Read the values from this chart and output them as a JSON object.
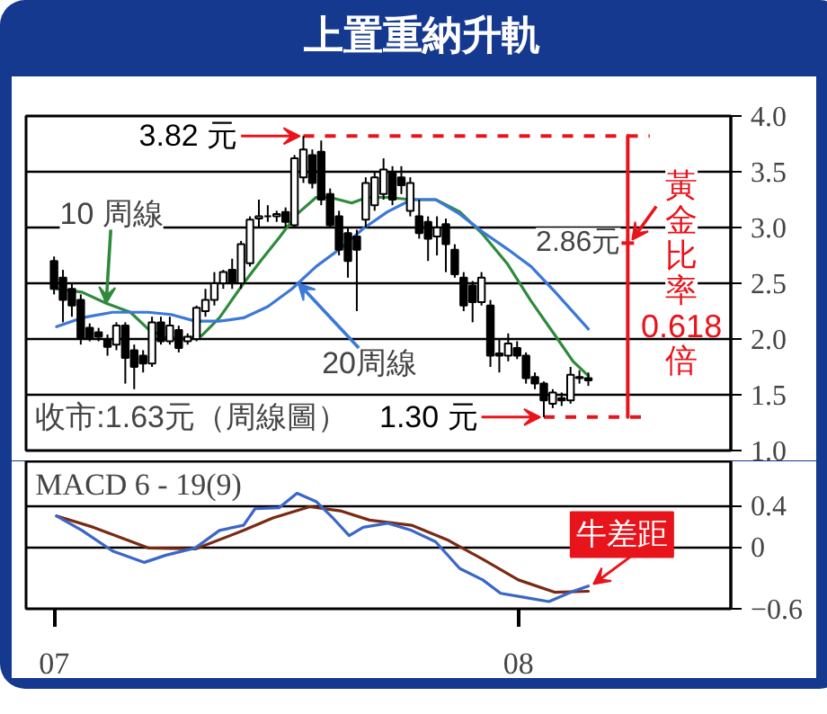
{
  "chart_data": [
    {
      "type": "candlestick",
      "title": "上置重納升軌",
      "xlim": [
        "2006-12-10",
        "2008-06-16"
      ],
      "ylim": [
        1.0,
        4.0
      ],
      "yticks": [
        {
          "value": 1,
          "label": "1.0"
        },
        1.5,
        {
          "value": 2,
          "label": "2.0"
        },
        2.5,
        {
          "value": 3,
          "label": "3.0"
        },
        3.5,
        {
          "value": 4,
          "label": "4.0"
        }
      ],
      "tick_labels": "y",
      "grid": "y",
      "x": [
        "2007-01-01",
        "2007-01-08",
        "2007-01-15",
        "2007-01-22",
        "2007-01-29",
        "2007-02-05",
        "2007-02-12",
        "2007-02-19",
        "2007-02-26",
        "2007-03-05",
        "2007-03-12",
        "2007-03-19",
        "2007-03-26",
        "2007-04-02",
        "2007-04-09",
        "2007-04-16",
        "2007-04-23",
        "2007-04-30",
        "2007-05-07",
        "2007-05-14",
        "2007-05-21",
        "2007-05-28",
        "2007-06-04",
        "2007-06-11",
        "2007-06-18",
        "2007-06-25",
        "2007-07-02",
        "2007-07-09",
        "2007-07-16",
        "2007-07-23",
        "2007-07-30",
        "2007-08-06",
        "2007-08-13",
        "2007-08-20",
        "2007-08-27",
        "2007-09-03",
        "2007-09-10",
        "2007-09-17",
        "2007-09-24",
        "2007-10-01",
        "2007-10-08",
        "2007-10-15",
        "2007-10-22",
        "2007-10-29",
        "2007-11-05",
        "2007-11-12",
        "2007-11-19",
        "2007-11-26",
        "2007-12-03",
        "2007-12-10",
        "2007-12-17",
        "2007-12-24",
        "2007-12-31",
        "2008-01-07",
        "2008-01-14",
        "2008-01-21",
        "2008-01-28",
        "2008-02-04",
        "2008-02-11",
        "2008-02-18",
        "2008-02-25"
      ],
      "ohlc": [
        [
          2.7,
          2.74,
          2.4,
          2.45
        ],
        [
          2.55,
          2.62,
          2.15,
          2.35
        ],
        [
          2.45,
          2.5,
          2.2,
          2.3
        ],
        [
          2.35,
          2.4,
          1.95,
          2.0
        ],
        [
          2.1,
          2.14,
          1.98,
          2.0
        ],
        [
          2.06,
          2.1,
          1.98,
          2.02
        ],
        [
          2.0,
          2.04,
          1.85,
          1.93
        ],
        [
          1.95,
          2.15,
          1.9,
          2.12
        ],
        [
          2.12,
          2.15,
          1.6,
          1.83
        ],
        [
          1.9,
          1.95,
          1.55,
          1.75
        ],
        [
          1.85,
          1.9,
          1.7,
          1.78
        ],
        [
          1.78,
          2.2,
          1.75,
          2.15
        ],
        [
          2.15,
          2.2,
          1.95,
          1.98
        ],
        [
          1.98,
          2.2,
          1.95,
          2.12
        ],
        [
          2.08,
          2.12,
          1.88,
          1.92
        ],
        [
          1.98,
          2.05,
          1.95,
          2.02
        ],
        [
          2.0,
          2.3,
          1.98,
          2.28
        ],
        [
          2.25,
          2.45,
          2.2,
          2.35
        ],
        [
          2.35,
          2.6,
          2.3,
          2.5
        ],
        [
          2.5,
          2.62,
          2.45,
          2.6
        ],
        [
          2.62,
          2.72,
          2.45,
          2.5
        ],
        [
          2.5,
          2.88,
          2.45,
          2.85
        ],
        [
          2.68,
          3.1,
          2.65,
          3.07
        ],
        [
          3.08,
          3.25,
          3.0,
          3.1
        ],
        [
          3.1,
          3.2,
          3.05,
          3.1
        ],
        [
          3.1,
          3.15,
          3.05,
          3.12
        ],
        [
          3.14,
          3.18,
          3.0,
          3.05
        ],
        [
          3.02,
          3.65,
          3.0,
          3.62
        ],
        [
          3.45,
          3.82,
          3.4,
          3.7
        ],
        [
          3.65,
          3.7,
          3.35,
          3.4
        ],
        [
          3.68,
          3.78,
          3.2,
          3.25
        ],
        [
          3.3,
          3.35,
          3.0,
          3.02
        ],
        [
          3.1,
          3.15,
          2.75,
          2.8
        ],
        [
          2.95,
          3.0,
          2.55,
          2.7
        ],
        [
          2.92,
          2.98,
          2.25,
          2.8
        ],
        [
          3.07,
          3.45,
          3.0,
          3.4
        ],
        [
          3.2,
          3.5,
          3.15,
          3.45
        ],
        [
          3.3,
          3.62,
          3.25,
          3.52
        ],
        [
          3.5,
          3.55,
          3.2,
          3.25
        ],
        [
          3.45,
          3.55,
          3.3,
          3.38
        ],
        [
          3.15,
          3.45,
          3.1,
          3.4
        ],
        [
          3.1,
          3.25,
          2.9,
          2.95
        ],
        [
          3.05,
          3.1,
          2.7,
          2.9
        ],
        [
          2.92,
          3.1,
          2.75,
          3.0
        ],
        [
          3.03,
          3.08,
          2.6,
          2.85
        ],
        [
          2.8,
          2.85,
          2.55,
          2.58
        ],
        [
          2.55,
          2.6,
          2.25,
          2.3
        ],
        [
          2.48,
          2.52,
          2.15,
          2.33
        ],
        [
          2.33,
          2.6,
          2.3,
          2.55
        ],
        [
          2.3,
          2.35,
          1.75,
          1.85
        ],
        [
          1.87,
          2.0,
          1.7,
          1.85
        ],
        [
          1.85,
          2.05,
          1.8,
          1.96
        ],
        [
          1.92,
          1.98,
          1.82,
          1.85
        ],
        [
          1.85,
          1.88,
          1.6,
          1.65
        ],
        [
          1.66,
          1.7,
          1.55,
          1.6
        ],
        [
          1.6,
          1.62,
          1.3,
          1.45
        ],
        [
          1.42,
          1.55,
          1.38,
          1.52
        ],
        [
          1.47,
          1.52,
          1.4,
          1.45
        ],
        [
          1.45,
          1.75,
          1.42,
          1.68
        ],
        [
          1.65,
          1.72,
          1.6,
          1.66
        ],
        [
          1.65,
          1.7,
          1.58,
          1.63
        ]
      ],
      "series": [
        {
          "type": "line",
          "color": "#2e8b3a",
          "x": [
            "2007-01-03",
            "2007-01-23",
            "2007-02-11",
            "2007-03-02",
            "2007-03-16",
            "2007-03-30",
            "2007-04-13",
            "2007-04-27",
            "2007-05-11",
            "2007-05-30",
            "2007-06-13",
            "2007-06-27",
            "2007-07-11",
            "2007-07-26",
            "2007-08-06",
            "2007-08-23",
            "2007-09-04",
            "2007-09-20",
            "2007-10-09",
            "2007-10-28",
            "2007-11-16",
            "2007-12-04",
            "2007-12-23",
            "2008-01-11",
            "2008-01-30",
            "2008-02-13",
            "2008-02-25"
          ],
          "values": [
            2.45,
            2.42,
            2.32,
            2.24,
            2.09,
            2.01,
            2.01,
            2.03,
            2.19,
            2.5,
            2.71,
            2.91,
            3.12,
            3.27,
            3.27,
            3.22,
            3.27,
            3.27,
            3.25,
            3.25,
            3.14,
            2.94,
            2.68,
            2.34,
            2.03,
            1.8,
            1.67
          ]
        },
        {
          "type": "line",
          "color": "#3b78d8",
          "x": [
            "2007-01-03",
            "2007-01-23",
            "2007-02-16",
            "2007-03-16",
            "2007-04-03",
            "2007-04-22",
            "2007-05-11",
            "2007-05-30",
            "2007-06-18",
            "2007-07-07",
            "2007-07-26",
            "2007-08-14",
            "2007-09-01",
            "2007-09-20",
            "2007-10-09",
            "2007-10-28",
            "2007-11-16",
            "2007-12-04",
            "2007-12-23",
            "2008-01-11",
            "2008-01-30",
            "2008-02-25"
          ],
          "values": [
            2.11,
            2.19,
            2.24,
            2.24,
            2.22,
            2.16,
            2.16,
            2.19,
            2.29,
            2.45,
            2.65,
            2.81,
            2.99,
            3.14,
            3.25,
            3.25,
            3.12,
            2.96,
            2.81,
            2.65,
            2.42,
            2.09
          ]
        },
        {
          "type": "line",
          "color": "#e8141c",
          "x": [
            "2008-03-27",
            "2008-03-27"
          ],
          "values": [
            1.3,
            3.82
          ]
        }
      ],
      "ref_lines": [
        {
          "axis": "y",
          "value": 3.82,
          "label": "3.82 元",
          "color": "#e8141c",
          "line_style": "dashed"
        },
        {
          "axis": "y",
          "value": 1.3,
          "label": "1.30 元",
          "color": "#e8141c",
          "line_style": "dashed"
        }
      ],
      "annotations": [
        {
          "text": "10 周線",
          "x": "2007-02-11",
          "y": 2.32
        },
        {
          "text": "20周線",
          "x": "2007-07-12",
          "y": 2.5
        },
        "2.86元",
        {
          "text": "黃金比率0.618倍",
          "x": "2008-03-27",
          "y": 2.86
        },
        "收市:1.63元（周線圖）"
      ]
    },
    {
      "type": "line",
      "xlim": [
        "2006-12-10",
        "2008-06-16"
      ],
      "ylim": [
        -0.6,
        0.83
      ],
      "xticks": [
        {
          "value": "2007-01-01",
          "label": "07"
        },
        {
          "value": "2008-01-01",
          "label": "08"
        }
      ],
      "yticks": [
        0.4,
        0,
        -0.6
      ],
      "grid": "y",
      "series": [
        {
          "type": "line",
          "color": "#7a2a12",
          "x": [
            "2007-01-03",
            "2007-02-01",
            "2007-03-16",
            "2007-04-22",
            "2007-05-30",
            "2007-06-22",
            "2007-07-21",
            "2007-08-14",
            "2007-09-06",
            "2007-10-09",
            "2007-11-06",
            "2007-12-04",
            "2008-01-01",
            "2008-01-30",
            "2008-02-25"
          ],
          "values": [
            0.3,
            0.19,
            -0.01,
            -0.02,
            0.16,
            0.28,
            0.39,
            0.35,
            0.26,
            0.21,
            0.07,
            -0.12,
            -0.32,
            -0.44,
            -0.43
          ]
        },
        {
          "type": "line",
          "color": "#3a66c8",
          "x": [
            "2007-01-03",
            "2007-01-23",
            "2007-02-16",
            "2007-03-13",
            "2007-03-30",
            "2007-04-22",
            "2007-05-11",
            "2007-05-30",
            "2007-06-08",
            "2007-06-27",
            "2007-07-11",
            "2007-07-26",
            "2007-08-09",
            "2007-08-21",
            "2007-09-01",
            "2007-09-20",
            "2007-10-09",
            "2007-10-28",
            "2007-11-16",
            "2007-12-04",
            "2007-12-18",
            "2008-01-06",
            "2008-01-25",
            "2008-02-13",
            "2008-02-25"
          ],
          "values": [
            0.3,
            0.16,
            -0.04,
            -0.15,
            -0.08,
            -0.01,
            0.16,
            0.21,
            0.37,
            0.38,
            0.52,
            0.44,
            0.27,
            0.11,
            0.19,
            0.23,
            0.16,
            0.05,
            -0.21,
            -0.32,
            -0.45,
            -0.49,
            -0.53,
            -0.43,
            -0.38
          ]
        }
      ],
      "annotations": [
        "MACD 6 - 19(9)",
        {
          "text": "牛差距",
          "x": "2008-02-29",
          "y": -0.36
        }
      ]
    }
  ]
}
